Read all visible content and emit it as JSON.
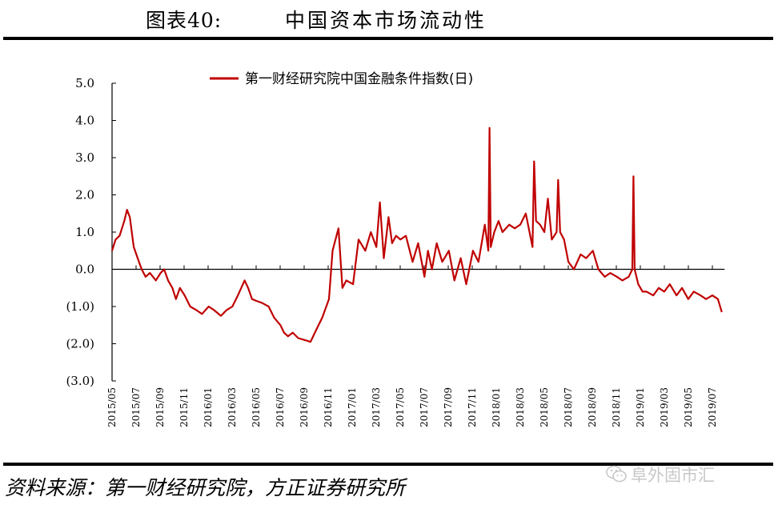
{
  "header": {
    "figure_label": "图表40:",
    "figure_title": "中国资本市场流动性"
  },
  "footer": {
    "source": "资料来源：第一财经研究院，方正证券研究所",
    "watermark": "阜外固市汇"
  },
  "colors": {
    "series": "#c00000",
    "axis": "#000000"
  },
  "chart_data": {
    "type": "line",
    "title": "",
    "xlabel": "",
    "ylabel": "",
    "ylim": [
      -3.0,
      5.0
    ],
    "y_ticks": [
      "5.0",
      "4.0",
      "3.0",
      "2.0",
      "1.0",
      "0.0",
      "(1.0)",
      "(2.0)",
      "(3.0)"
    ],
    "y_tick_values": [
      5,
      4,
      3,
      2,
      1,
      0,
      -1,
      -2,
      -3
    ],
    "x_ticks": [
      "2015/05",
      "2015/07",
      "2015/09",
      "2015/11",
      "2016/01",
      "2016/03",
      "2016/05",
      "2016/07",
      "2016/09",
      "2016/11",
      "2017/01",
      "2017/03",
      "2017/05",
      "2017/07",
      "2017/09",
      "2017/11",
      "2018/01",
      "2018/03",
      "2018/05",
      "2018/07",
      "2018/09",
      "2018/11",
      "2019/01",
      "2019/03",
      "2019/05",
      "2019/07"
    ],
    "legend_position": "top-center",
    "grid": false,
    "series": [
      {
        "name": "第一财经研究院中国金融条件指数(日)",
        "x": [
          "2015/05/01",
          "2015/05/10",
          "2015/05/20",
          "2015/06/01",
          "2015/06/08",
          "2015/06/15",
          "2015/06/25",
          "2015/07/05",
          "2015/07/15",
          "2015/07/25",
          "2015/08/05",
          "2015/08/20",
          "2015/09/01",
          "2015/09/10",
          "2015/09/20",
          "2015/10/01",
          "2015/10/10",
          "2015/10/20",
          "2015/11/01",
          "2015/11/15",
          "2015/12/01",
          "2015/12/15",
          "2016/01/01",
          "2016/01/15",
          "2016/02/01",
          "2016/02/15",
          "2016/03/01",
          "2016/03/15",
          "2016/04/01",
          "2016/04/10",
          "2016/04/20",
          "2016/05/01",
          "2016/05/15",
          "2016/06/01",
          "2016/06/15",
          "2016/07/01",
          "2016/07/10",
          "2016/07/20",
          "2016/08/01",
          "2016/08/15",
          "2016/09/01",
          "2016/09/15",
          "2016/10/01",
          "2016/10/15",
          "2016/11/01",
          "2016/11/10",
          "2016/11/20",
          "2016/11/25",
          "2016/12/05",
          "2016/12/15",
          "2017/01/01",
          "2017/01/15",
          "2017/02/01",
          "2017/02/15",
          "2017/03/01",
          "2017/03/10",
          "2017/03/20",
          "2017/04/01",
          "2017/04/10",
          "2017/04/20",
          "2017/05/01",
          "2017/05/15",
          "2017/06/01",
          "2017/06/15",
          "2017/07/01",
          "2017/07/10",
          "2017/07/20",
          "2017/08/01",
          "2017/08/15",
          "2017/09/01",
          "2017/09/15",
          "2017/10/01",
          "2017/10/15",
          "2017/11/01",
          "2017/11/15",
          "2017/12/01",
          "2017/12/10",
          "2017/12/13",
          "2017/12/16",
          "2017/12/25",
          "2018/01/05",
          "2018/01/15",
          "2018/02/01",
          "2018/02/15",
          "2018/03/01",
          "2018/03/15",
          "2018/04/01",
          "2018/04/05",
          "2018/04/10",
          "2018/04/20",
          "2018/05/01",
          "2018/05/10",
          "2018/05/20",
          "2018/06/01",
          "2018/06/05",
          "2018/06/10",
          "2018/06/20",
          "2018/07/01",
          "2018/07/15",
          "2018/08/01",
          "2018/08/15",
          "2018/09/01",
          "2018/09/15",
          "2018/10/01",
          "2018/10/15",
          "2018/11/01",
          "2018/11/15",
          "2018/12/01",
          "2018/12/10",
          "2018/12/13",
          "2018/12/16",
          "2018/12/25",
          "2019/01/05",
          "2019/01/15",
          "2019/02/01",
          "2019/02/15",
          "2019/03/01",
          "2019/03/15",
          "2019/04/01",
          "2019/04/15",
          "2019/05/01",
          "2019/05/15",
          "2019/06/01",
          "2019/06/15",
          "2019/07/01",
          "2019/07/15",
          "2019/07/25"
        ],
        "values": [
          0.5,
          0.8,
          0.9,
          1.3,
          1.6,
          1.4,
          0.6,
          0.3,
          0.0,
          -0.2,
          -0.1,
          -0.3,
          -0.1,
          0.0,
          -0.3,
          -0.5,
          -0.8,
          -0.5,
          -0.7,
          -1.0,
          -1.1,
          -1.2,
          -1.0,
          -1.1,
          -1.25,
          -1.1,
          -1.0,
          -0.7,
          -0.3,
          -0.5,
          -0.8,
          -0.85,
          -0.9,
          -1.0,
          -1.3,
          -1.5,
          -1.7,
          -1.8,
          -1.7,
          -1.85,
          -1.9,
          -1.95,
          -1.6,
          -1.3,
          -0.8,
          0.5,
          0.9,
          1.1,
          -0.5,
          -0.3,
          -0.4,
          0.8,
          0.5,
          1.0,
          0.6,
          1.8,
          0.3,
          1.4,
          0.7,
          0.9,
          0.8,
          0.9,
          0.2,
          0.7,
          -0.2,
          0.5,
          0.0,
          0.7,
          0.2,
          0.5,
          -0.3,
          0.3,
          -0.4,
          0.5,
          0.2,
          1.2,
          0.5,
          3.8,
          0.6,
          1.0,
          1.3,
          1.0,
          1.2,
          1.1,
          1.2,
          1.5,
          0.6,
          2.9,
          1.3,
          1.2,
          1.0,
          1.9,
          0.8,
          1.0,
          2.4,
          1.0,
          0.8,
          0.2,
          0.0,
          0.4,
          0.3,
          0.5,
          0.0,
          -0.2,
          -0.1,
          -0.2,
          -0.3,
          -0.2,
          0.0,
          2.5,
          0.0,
          -0.4,
          -0.6,
          -0.6,
          -0.7,
          -0.5,
          -0.6,
          -0.4,
          -0.7,
          -0.5,
          -0.8,
          -0.6,
          -0.7,
          -0.8,
          -0.7,
          -0.8,
          -1.15
        ]
      }
    ]
  }
}
